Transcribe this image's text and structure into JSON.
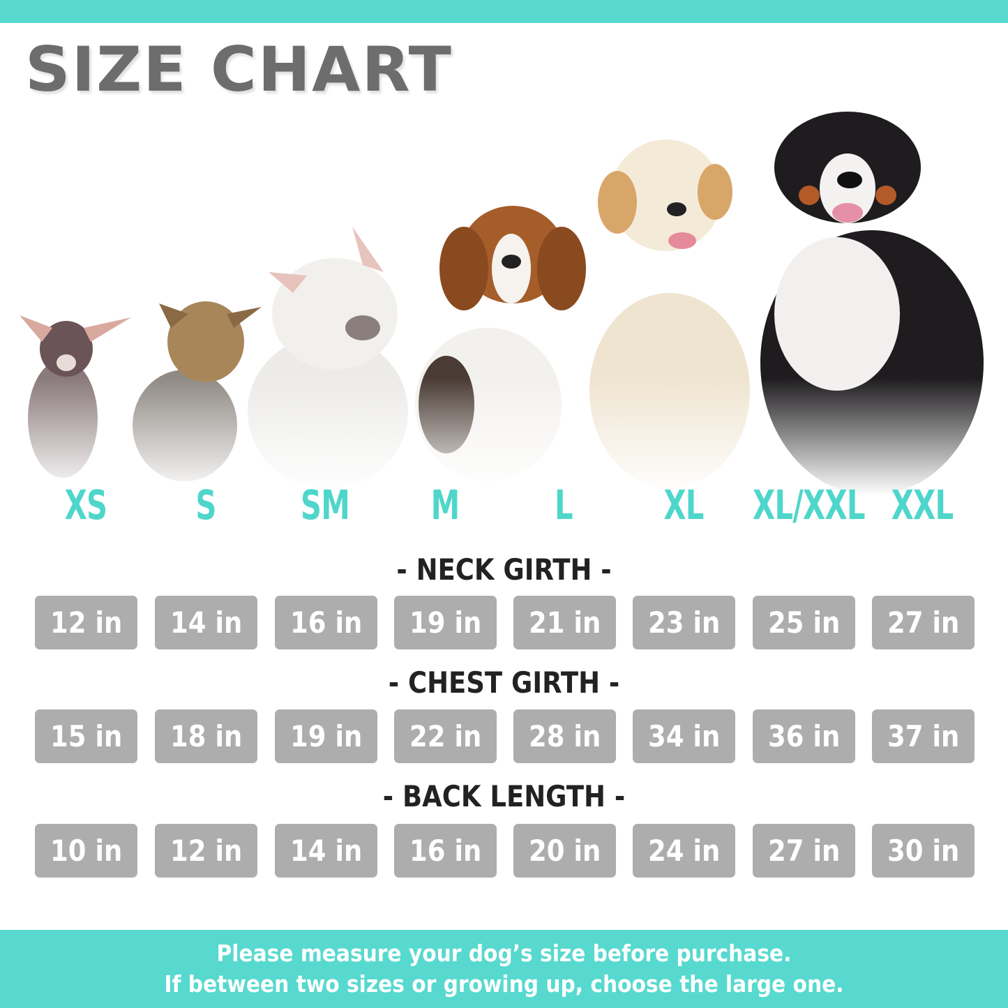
{
  "title": "SIZE CHART",
  "colors": {
    "accent": "#57d9cf",
    "size_label": "#4fd6cb",
    "cell_bg": "#adadad",
    "title": "#6d6d6d"
  },
  "sizes": [
    "XS",
    "S",
    "SM",
    "M",
    "L",
    "XL",
    "XL/XXL",
    "XXL"
  ],
  "dog_images": [
    "chihuahua",
    "yorkshire-terrier",
    "french-bulldog",
    "beagle",
    "golden-retriever",
    "bernese-mountain-dog"
  ],
  "measurements": [
    {
      "label": "- NECK GIRTH -",
      "values": [
        "12 in",
        "14 in",
        "16 in",
        "19 in",
        "21 in",
        "23 in",
        "25 in",
        "27 in"
      ]
    },
    {
      "label": "- CHEST GIRTH -",
      "values": [
        "15 in",
        "18 in",
        "19 in",
        "22 in",
        "28 in",
        "34 in",
        "36 in",
        "37 in"
      ]
    },
    {
      "label": "- BACK LENGTH -",
      "values": [
        "10 in",
        "12 in",
        "14 in",
        "16 in",
        "20 in",
        "24 in",
        "27 in",
        "30 in"
      ]
    }
  ],
  "footer": {
    "line1": "Please measure your dog’s size before purchase.",
    "line2": "If between two sizes or growing up, choose the large one."
  }
}
